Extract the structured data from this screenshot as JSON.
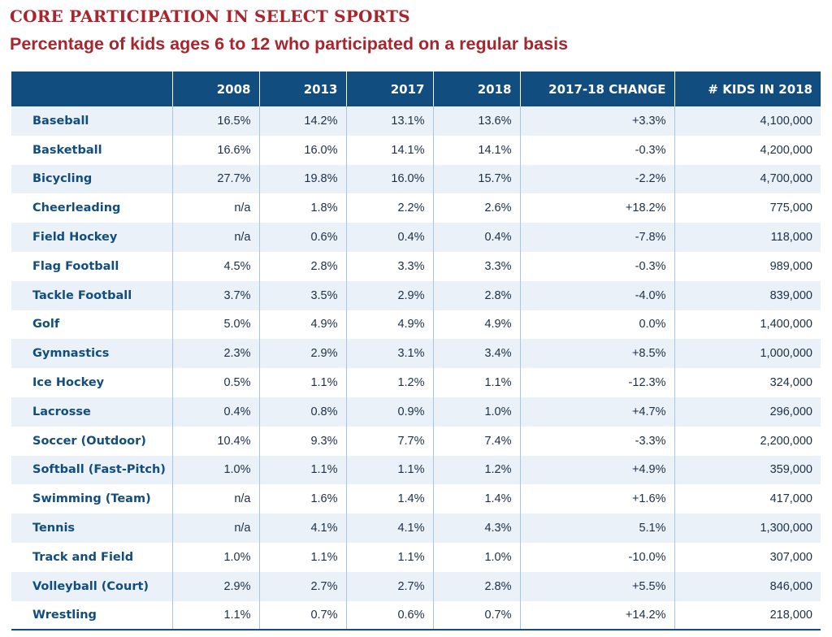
{
  "title": "CORE PARTICIPATION IN SELECT SPORTS",
  "subtitle": "Percentage of kids ages 6 to 12 who participated on a regular basis",
  "colors": {
    "title": "#a8252e",
    "header_bg": "#124d80",
    "row_alt_bg": "#eaf1f8",
    "sport_text": "#124d80"
  },
  "chart_data": {
    "type": "table",
    "columns": [
      "",
      "2008",
      "2013",
      "2017",
      "2018",
      "2017-18 CHANGE",
      "# KIDS IN 2018"
    ],
    "rows": [
      [
        "Baseball",
        "16.5%",
        "14.2%",
        "13.1%",
        "13.6%",
        "+3.3%",
        "4,100,000"
      ],
      [
        "Basketball",
        "16.6%",
        "16.0%",
        "14.1%",
        "14.1%",
        "-0.3%",
        "4,200,000"
      ],
      [
        "Bicycling",
        "27.7%",
        "19.8%",
        "16.0%",
        "15.7%",
        "-2.2%",
        "4,700,000"
      ],
      [
        "Cheerleading",
        "n/a",
        "1.8%",
        "2.2%",
        "2.6%",
        "+18.2%",
        "775,000"
      ],
      [
        "Field Hockey",
        "n/a",
        "0.6%",
        "0.4%",
        "0.4%",
        "-7.8%",
        "118,000"
      ],
      [
        "Flag Football",
        "4.5%",
        "2.8%",
        "3.3%",
        "3.3%",
        "-0.3%",
        "989,000"
      ],
      [
        "Tackle Football",
        "3.7%",
        "3.5%",
        "2.9%",
        "2.8%",
        "-4.0%",
        "839,000"
      ],
      [
        "Golf",
        "5.0%",
        "4.9%",
        "4.9%",
        "4.9%",
        "0.0%",
        "1,400,000"
      ],
      [
        "Gymnastics",
        "2.3%",
        "2.9%",
        "3.1%",
        "3.4%",
        "+8.5%",
        "1,000,000"
      ],
      [
        "Ice Hockey",
        "0.5%",
        "1.1%",
        "1.2%",
        "1.1%",
        "-12.3%",
        "324,000"
      ],
      [
        "Lacrosse",
        "0.4%",
        "0.8%",
        "0.9%",
        "1.0%",
        "+4.7%",
        "296,000"
      ],
      [
        "Soccer (Outdoor)",
        "10.4%",
        "9.3%",
        "7.7%",
        "7.4%",
        "-3.3%",
        "2,200,000"
      ],
      [
        "Softball (Fast-Pitch)",
        "1.0%",
        "1.1%",
        "1.1%",
        "1.2%",
        "+4.9%",
        "359,000"
      ],
      [
        "Swimming (Team)",
        "n/a",
        "1.6%",
        "1.4%",
        "1.4%",
        "+1.6%",
        "417,000"
      ],
      [
        "Tennis",
        "n/a",
        "4.1%",
        "4.1%",
        "4.3%",
        "5.1%",
        "1,300,000"
      ],
      [
        "Track and Field",
        "1.0%",
        "1.1%",
        "1.1%",
        "1.0%",
        "-10.0%",
        "307,000"
      ],
      [
        "Volleyball (Court)",
        "2.9%",
        "2.7%",
        "2.7%",
        "2.8%",
        "+5.5%",
        "846,000"
      ],
      [
        "Wrestling",
        "1.1%",
        "0.7%",
        "0.6%",
        "0.7%",
        "+14.2%",
        "218,000"
      ]
    ]
  }
}
